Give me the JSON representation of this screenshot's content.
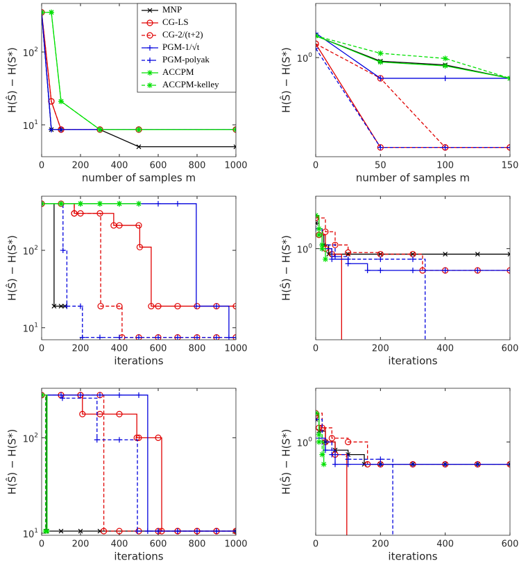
{
  "chart_data": [
    {
      "type": "line",
      "log_y": true,
      "step": false,
      "legend": "upper right",
      "x_label": "number of samples m",
      "y_label": "H(Ŝ) − H(S*)",
      "xlim": [
        0,
        1000
      ],
      "ylim": [
        3.65,
        464
      ],
      "xticks": [
        0,
        200,
        400,
        600,
        800,
        1000
      ],
      "yticks": [
        {
          "value": 10,
          "label": "10^1"
        },
        {
          "value": 100,
          "label": "10^2"
        }
      ],
      "series": [
        {
          "name": "MNP",
          "color": "#000000",
          "dash": false,
          "marker": "x",
          "x": [
            0,
            50,
            100,
            300,
            500,
            1000
          ],
          "values": [
            350,
            8.6,
            8.6,
            8.6,
            5.0,
            5.0
          ]
        },
        {
          "name": "CG-LS",
          "color": "#e00000",
          "dash": false,
          "marker": "o",
          "x": [
            0,
            50,
            100,
            300,
            500,
            1000
          ],
          "values": [
            350,
            21,
            8.6,
            8.6,
            8.6,
            8.6
          ]
        },
        {
          "name": "CG-2/(t+2)",
          "color": "#e00000",
          "dash": true,
          "marker": "o",
          "x": [
            0,
            50,
            100,
            300,
            500,
            1000
          ],
          "values": [
            350,
            21,
            8.6,
            8.6,
            8.6,
            8.6
          ]
        },
        {
          "name": "PGM-1/√t",
          "color": "#0000dd",
          "dash": false,
          "marker": "+",
          "x": [
            0,
            50,
            100,
            300,
            500,
            1000
          ],
          "values": [
            350,
            8.6,
            8.6,
            8.6,
            8.6,
            8.6
          ]
        },
        {
          "name": "PGM-polyak",
          "color": "#0000dd",
          "dash": true,
          "marker": "+",
          "x": [
            0,
            50,
            100,
            300,
            500,
            1000
          ],
          "values": [
            350,
            8.6,
            8.6,
            8.6,
            8.6,
            8.6
          ]
        },
        {
          "name": "ACCPM",
          "color": "#00e000",
          "dash": false,
          "marker": "*",
          "x": [
            0,
            50,
            100,
            300,
            500,
            1000
          ],
          "values": [
            350,
            350,
            21,
            8.6,
            8.6,
            8.6
          ]
        },
        {
          "name": "ACCPM-kelley",
          "color": "#00e000",
          "dash": true,
          "marker": "*",
          "x": [
            0,
            50,
            100,
            300,
            500,
            1000
          ],
          "values": [
            350,
            350,
            21,
            8.6,
            8.6,
            8.6
          ]
        }
      ]
    },
    {
      "type": "line",
      "log_y": true,
      "step": false,
      "x_label": "number of samples m",
      "y_label": "H(Ŝ) − H(S*)",
      "xlim": [
        0,
        150
      ],
      "ylim": [
        0.324,
        1.85
      ],
      "xticks": [
        0,
        50,
        100,
        150
      ],
      "yticks": [
        {
          "value": 1,
          "label": "10^0"
        }
      ],
      "series": [
        {
          "color": "#000000",
          "dash": false,
          "marker": "x",
          "x": [
            0,
            50,
            100,
            150
          ],
          "values": [
            1.28,
            0.96,
            0.92,
            0.79
          ]
        },
        {
          "color": "#e00000",
          "dash": false,
          "marker": "o",
          "x": [
            0,
            50,
            100,
            150
          ],
          "values": [
            1.17,
            0.36,
            0.36,
            0.36
          ]
        },
        {
          "color": "#e00000",
          "dash": true,
          "marker": "o",
          "x": [
            0,
            50,
            100,
            150
          ],
          "values": [
            1.17,
            0.79,
            0.36,
            0.36
          ]
        },
        {
          "color": "#0000dd",
          "dash": false,
          "marker": "+",
          "x": [
            0,
            50,
            100,
            150
          ],
          "values": [
            1.32,
            0.79,
            0.79,
            0.79
          ]
        },
        {
          "color": "#0000dd",
          "dash": true,
          "marker": "+",
          "x": [
            0,
            50,
            100,
            150
          ],
          "values": [
            1.11,
            0.36,
            0.36,
            0.36
          ]
        },
        {
          "color": "#00e000",
          "dash": false,
          "marker": "*",
          "x": [
            0,
            50,
            100,
            150
          ],
          "values": [
            1.28,
            0.95,
            0.91,
            0.79
          ]
        },
        {
          "color": "#00e000",
          "dash": true,
          "marker": "*",
          "x": [
            0,
            50,
            100,
            150
          ],
          "values": [
            1.28,
            1.05,
            0.99,
            0.79
          ]
        }
      ]
    },
    {
      "type": "line",
      "log_y": true,
      "step": true,
      "x_label": "iterations",
      "y_label": "H(Ŝ) − H(S*)",
      "xlim": [
        0,
        1000
      ],
      "ylim": [
        7,
        500
      ],
      "xticks": [
        0,
        200,
        400,
        600,
        800,
        1000
      ],
      "yticks": [
        {
          "value": 10,
          "label": "10^1"
        },
        {
          "value": 100,
          "label": "10^2"
        }
      ],
      "series": [
        {
          "color": "#000000",
          "dash": false,
          "marker": "x",
          "x": [
            0,
            64,
            100,
            120
          ],
          "values": [
            400,
            19,
            19,
            19
          ]
        },
        {
          "color": "#e00000",
          "dash": false,
          "marker": "o",
          "x": [
            0,
            100,
            168,
            200,
            300,
            371,
            400,
            500,
            505,
            564,
            600,
            700,
            800,
            900,
            1000
          ],
          "values": [
            400,
            400,
            300,
            300,
            300,
            210,
            210,
            210,
            110,
            19,
            19,
            19,
            19,
            19,
            19
          ]
        },
        {
          "color": "#e00000",
          "dash": true,
          "marker": "o",
          "x": [
            0,
            168,
            304,
            400,
            414,
            500,
            600,
            700,
            800,
            900,
            1000
          ],
          "values": [
            400,
            300,
            19,
            19,
            7.5,
            7.5,
            7.5,
            7.5,
            7.5,
            7.5,
            7.5
          ]
        },
        {
          "color": "#0000dd",
          "dash": false,
          "marker": "+",
          "x": [
            0,
            100,
            200,
            300,
            400,
            500,
            600,
            700,
            796,
            900,
            964,
            1000
          ],
          "values": [
            400,
            400,
            400,
            400,
            400,
            400,
            400,
            400,
            19,
            19,
            7.5,
            7.5
          ]
        },
        {
          "color": "#0000dd",
          "dash": true,
          "marker": "+",
          "x": [
            0,
            110,
            130,
            200,
            210,
            300,
            400,
            500,
            600,
            700,
            800,
            900,
            1000
          ],
          "values": [
            400,
            100,
            19,
            19,
            7.5,
            7.5,
            7.5,
            7.5,
            7.5,
            7.5,
            7.5,
            7.5,
            7.5
          ]
        },
        {
          "color": "#00e000",
          "dash": false,
          "marker": "*",
          "x": [
            0,
            100,
            200,
            300,
            400,
            500
          ],
          "values": [
            400,
            400,
            400,
            400,
            400,
            400
          ]
        },
        {
          "color": "#00e000",
          "dash": true,
          "marker": "*",
          "x": [
            0,
            100,
            200,
            300,
            400
          ],
          "values": [
            400,
            400,
            400,
            400,
            400
          ]
        }
      ]
    },
    {
      "type": "line",
      "log_y": true,
      "step": true,
      "x_label": "iterations",
      "y_label": "H(Ŝ) − H(S*)",
      "xlim": [
        0,
        600
      ],
      "ylim": [
        0.3,
        2.0
      ],
      "xticks": [
        0,
        200,
        400,
        600
      ],
      "yticks": [
        {
          "value": 1,
          "label": "10^0"
        }
      ],
      "series": [
        {
          "color": "#000000",
          "dash": false,
          "marker": "x",
          "x": [
            0,
            10,
            25,
            40,
            100,
            200,
            300,
            400,
            500,
            600
          ],
          "values": [
            1.4,
            1.2,
            1.05,
            0.93,
            0.93,
            0.93,
            0.93,
            0.93,
            0.93,
            0.93
          ]
        },
        {
          "color": "#e00000",
          "dash": false,
          "marker": "o",
          "x": [
            0,
            10,
            30,
            50,
            80
          ],
          "values": [
            1.5,
            1.2,
            1.0,
            0.93,
            0.2
          ]
        },
        {
          "color": "#e00000",
          "dash": true,
          "marker": "o",
          "x": [
            0,
            30,
            60,
            100,
            200,
            300,
            330,
            400,
            500,
            600
          ],
          "values": [
            1.5,
            1.25,
            1.05,
            0.95,
            0.93,
            0.93,
            0.75,
            0.75,
            0.75,
            0.75
          ]
        },
        {
          "color": "#0000dd",
          "dash": false,
          "marker": "+",
          "x": [
            0,
            20,
            50,
            100,
            160,
            200,
            300,
            400,
            500,
            600
          ],
          "values": [
            1.3,
            1.0,
            0.87,
            0.82,
            0.75,
            0.75,
            0.75,
            0.75,
            0.75,
            0.75
          ]
        },
        {
          "color": "#0000dd",
          "dash": true,
          "marker": "+",
          "x": [
            0,
            20,
            60,
            100,
            200,
            300,
            338
          ],
          "values": [
            1.3,
            1.05,
            0.9,
            0.87,
            0.87,
            0.87,
            0.2
          ]
        },
        {
          "color": "#00e000",
          "dash": false,
          "marker": "*",
          "x": [
            0,
            10,
            20,
            30
          ],
          "values": [
            1.55,
            1.2,
            1.0,
            0.87
          ]
        },
        {
          "color": "#00e000",
          "dash": true,
          "marker": "*",
          "x": [
            0,
            10,
            20
          ],
          "values": [
            1.55,
            1.3,
            1.05
          ]
        }
      ]
    },
    {
      "type": "line",
      "log_y": true,
      "step": true,
      "x_label": "iterations",
      "y_label": "H(Ŝ) − H(S*)",
      "xlim": [
        0,
        1000
      ],
      "ylim": [
        9.5,
        330
      ],
      "xticks": [
        0,
        200,
        400,
        600,
        800,
        1000
      ],
      "yticks": [
        {
          "value": 10,
          "label": "10^1"
        },
        {
          "value": 100,
          "label": "10^2"
        }
      ],
      "series": [
        {
          "color": "#000000",
          "dash": false,
          "marker": "x",
          "x": [
            0,
            25,
            100,
            200,
            300,
            1000
          ],
          "values": [
            280,
            10.5,
            10.5,
            10.5,
            10.5,
            10.5
          ]
        },
        {
          "color": "#e00000",
          "dash": false,
          "marker": "o",
          "x": [
            0,
            100,
            200,
            210,
            300,
            400,
            490,
            500,
            600,
            618,
            700,
            800,
            900,
            1000
          ],
          "values": [
            280,
            280,
            280,
            177,
            177,
            177,
            100,
            100,
            100,
            10.5,
            10.5,
            10.5,
            10.5,
            10.5
          ]
        },
        {
          "color": "#e00000",
          "dash": true,
          "marker": "o",
          "x": [
            0,
            100,
            200,
            300,
            320,
            400,
            500,
            600,
            700,
            800,
            900,
            1000
          ],
          "values": [
            280,
            280,
            280,
            280,
            10.5,
            10.5,
            10.5,
            10.5,
            10.5,
            10.5,
            10.5,
            10.5
          ]
        },
        {
          "color": "#0000dd",
          "dash": false,
          "marker": "+",
          "x": [
            0,
            100,
            200,
            300,
            400,
            500,
            546,
            600,
            700,
            800,
            900,
            1000
          ],
          "values": [
            280,
            280,
            280,
            280,
            280,
            280,
            10.5,
            10.5,
            10.5,
            10.5,
            10.5,
            10.5
          ]
        },
        {
          "color": "#0000dd",
          "dash": true,
          "marker": "+",
          "x": [
            0,
            107,
            285,
            400,
            493,
            600,
            700,
            800,
            900,
            1000
          ],
          "values": [
            280,
            260,
            95,
            95,
            10.5,
            10.5,
            10.5,
            10.5,
            10.5,
            10.5
          ]
        },
        {
          "color": "#00e000",
          "dash": false,
          "marker": "*",
          "x": [
            0,
            28
          ],
          "values": [
            280,
            10.5
          ]
        },
        {
          "color": "#00e000",
          "dash": true,
          "marker": "*",
          "x": [
            0,
            20
          ],
          "values": [
            280,
            10.5
          ]
        }
      ]
    },
    {
      "type": "line",
      "log_y": true,
      "step": true,
      "x_label": "iterations",
      "y_label": "H(Ŝ) − H(S*)",
      "xlim": [
        0,
        600
      ],
      "ylim": [
        0.3,
        2.0
      ],
      "xticks": [
        0,
        200,
        400,
        600
      ],
      "yticks": [
        {
          "value": 1,
          "label": "10^0"
        }
      ],
      "series": [
        {
          "color": "#000000",
          "dash": false,
          "marker": "x",
          "x": [
            0,
            10,
            30,
            60,
            100,
            150,
            200,
            300,
            400,
            500,
            600
          ],
          "values": [
            1.34,
            1.15,
            1.0,
            0.9,
            0.85,
            0.75,
            0.75,
            0.75,
            0.75,
            0.75,
            0.75
          ]
        },
        {
          "color": "#e00000",
          "dash": false,
          "marker": "o",
          "x": [
            0,
            10,
            30,
            60,
            96
          ],
          "values": [
            1.4,
            1.2,
            1.0,
            0.85,
            0.2
          ]
        },
        {
          "color": "#e00000",
          "dash": true,
          "marker": "o",
          "x": [
            0,
            20,
            50,
            100,
            160,
            200,
            300,
            400,
            500,
            600
          ],
          "values": [
            1.45,
            1.2,
            1.05,
            1.0,
            0.75,
            0.75,
            0.75,
            0.75,
            0.75,
            0.75
          ]
        },
        {
          "color": "#0000dd",
          "dash": false,
          "marker": "+",
          "x": [
            0,
            10,
            30,
            60,
            100,
            200,
            300,
            400,
            500,
            600
          ],
          "values": [
            1.34,
            1.05,
            0.9,
            0.75,
            0.75,
            0.75,
            0.75,
            0.75,
            0.75,
            0.75
          ]
        },
        {
          "color": "#0000dd",
          "dash": true,
          "marker": "+",
          "x": [
            0,
            20,
            50,
            100,
            200,
            238
          ],
          "values": [
            1.34,
            1.0,
            0.85,
            0.8,
            0.8,
            0.2
          ]
        },
        {
          "color": "#00e000",
          "dash": false,
          "marker": "*",
          "x": [
            0,
            10,
            25
          ],
          "values": [
            1.45,
            1.0,
            0.75
          ]
        },
        {
          "color": "#00e000",
          "dash": true,
          "marker": "*",
          "x": [
            0,
            10,
            20
          ],
          "values": [
            1.45,
            1.1,
            0.85
          ]
        }
      ]
    }
  ]
}
